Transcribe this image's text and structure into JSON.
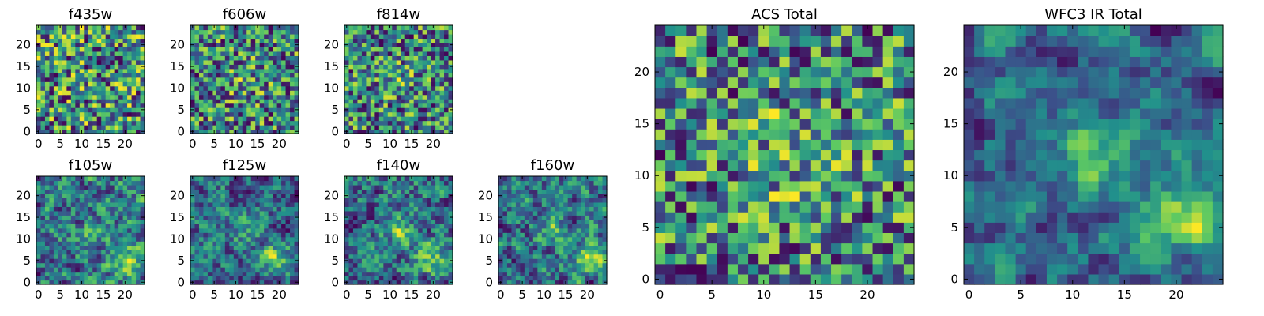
{
  "figure": {
    "colormap": "viridis",
    "palette": [
      "#440154",
      "#3b528b",
      "#21918c",
      "#5ec962",
      "#fde725"
    ]
  },
  "chart_data": [
    {
      "type": "heatmap",
      "title": "f435w",
      "grid": 25,
      "seed": 11,
      "smooth": 0,
      "blob": [
        12,
        12,
        0.0,
        3
      ],
      "xticks": [
        0,
        5,
        10,
        15,
        20
      ],
      "yticks": [
        0,
        5,
        10,
        15,
        20
      ],
      "xlim": [
        0,
        24
      ],
      "ylim": [
        0,
        24
      ]
    },
    {
      "type": "heatmap",
      "title": "f606w",
      "grid": 25,
      "seed": 23,
      "smooth": 0,
      "blob": [
        12,
        12,
        0.15,
        3
      ],
      "xticks": [
        0,
        5,
        10,
        15,
        20
      ],
      "yticks": [
        0,
        5,
        10,
        15,
        20
      ],
      "xlim": [
        0,
        24
      ],
      "ylim": [
        0,
        24
      ]
    },
    {
      "type": "heatmap",
      "title": "f814w",
      "grid": 25,
      "seed": 37,
      "smooth": 0,
      "blob": [
        12,
        12,
        0.15,
        3
      ],
      "xticks": [
        0,
        5,
        10,
        15,
        20
      ],
      "yticks": [
        0,
        5,
        10,
        15,
        20
      ],
      "xlim": [
        0,
        24
      ],
      "ylim": [
        0,
        24
      ]
    },
    {
      "type": "heatmap",
      "title": "f105w",
      "grid": 25,
      "seed": 41,
      "smooth": 1,
      "blob": [
        20,
        5.5,
        0.35,
        2.5
      ],
      "blob2": [
        13,
        12,
        0.2,
        2.5
      ],
      "xticks": [
        0,
        5,
        10,
        15,
        20
      ],
      "yticks": [
        0,
        5,
        10,
        15,
        20
      ],
      "xlim": [
        0,
        24
      ],
      "ylim": [
        0,
        24
      ]
    },
    {
      "type": "heatmap",
      "title": "f125w",
      "grid": 25,
      "seed": 53,
      "smooth": 1,
      "blob": [
        20,
        5.5,
        0.4,
        2.5
      ],
      "blob2": [
        13,
        12,
        0.2,
        2.5
      ],
      "xticks": [
        0,
        5,
        10,
        15,
        20
      ],
      "yticks": [
        0,
        5,
        10,
        15,
        20
      ],
      "xlim": [
        0,
        24
      ],
      "ylim": [
        0,
        24
      ]
    },
    {
      "type": "heatmap",
      "title": "f140w",
      "grid": 25,
      "seed": 67,
      "smooth": 1,
      "blob": [
        20,
        5.5,
        0.4,
        2.5
      ],
      "blob2": [
        12,
        12,
        0.3,
        2.5
      ],
      "xticks": [
        0,
        5,
        10,
        15,
        20
      ],
      "yticks": [
        0,
        5,
        10,
        15,
        20
      ],
      "xlim": [
        0,
        24
      ],
      "ylim": [
        0,
        24
      ]
    },
    {
      "type": "heatmap",
      "title": "f160w",
      "grid": 25,
      "seed": 79,
      "smooth": 1,
      "blob": [
        20,
        5.5,
        0.45,
        2.5
      ],
      "blob2": [
        12,
        12,
        0.25,
        2.5
      ],
      "xticks": [
        0,
        5,
        10,
        15,
        20
      ],
      "yticks": [
        0,
        5,
        10,
        15,
        20
      ],
      "xlim": [
        0,
        24
      ],
      "ylim": [
        0,
        24
      ]
    },
    {
      "type": "heatmap",
      "title": "ACS Total",
      "grid": 25,
      "seed": 97,
      "smooth": 0,
      "blob": [
        12,
        12,
        0.15,
        4
      ],
      "xticks": [
        0,
        5,
        10,
        15,
        20
      ],
      "yticks": [
        0,
        5,
        10,
        15,
        20
      ],
      "xlim": [
        0,
        24
      ],
      "ylim": [
        0,
        24
      ]
    },
    {
      "type": "heatmap",
      "title": "WFC3 IR Total",
      "grid": 25,
      "seed": 113,
      "smooth": 2,
      "blob": [
        20,
        5.5,
        0.45,
        2.5
      ],
      "blob2": [
        12,
        12,
        0.3,
        2.2
      ],
      "xticks": [
        0,
        5,
        10,
        15,
        20
      ],
      "yticks": [
        0,
        5,
        10,
        15,
        20
      ],
      "xlim": [
        0,
        24
      ],
      "ylim": [
        0,
        24
      ]
    }
  ]
}
